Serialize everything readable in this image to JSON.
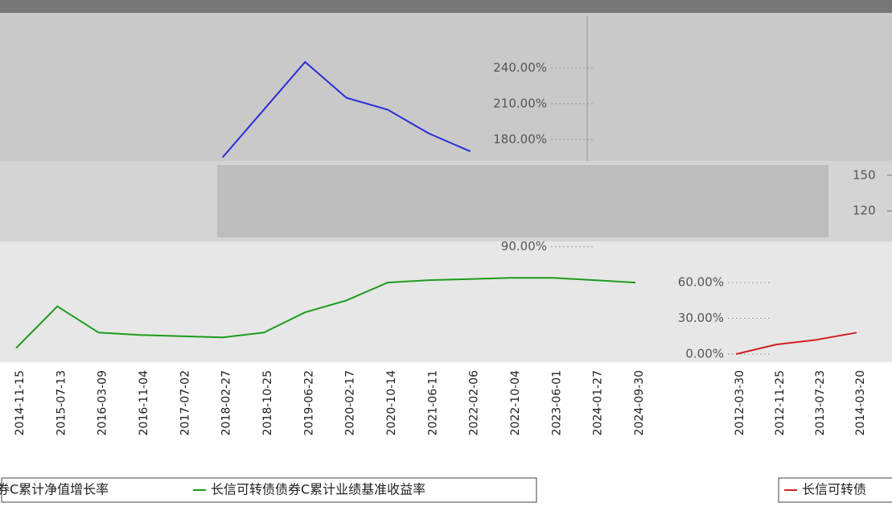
{
  "chart_data": [
    {
      "type": "line",
      "x": [
        "2014-11-15",
        "2015-07-13",
        "2016-03-09",
        "2016-11-04",
        "2017-07-02",
        "2018-02-27",
        "2018-10-25",
        "2019-06-22",
        "2020-02-17",
        "2020-10-14",
        "2021-06-11",
        "2022-02-06",
        "2022-10-04",
        "2023-06-01",
        "2024-01-27",
        "2024-09-30"
      ],
      "series": [
        {
          "name": "长信可转债债券C累计净值增长率",
          "color": "#2b2bd6",
          "values": [
            null,
            null,
            null,
            null,
            null,
            165,
            205,
            245,
            215,
            205,
            185,
            170,
            null,
            null,
            null,
            null
          ]
        },
        {
          "name": "长信可转债债券C累计业绩基准收益率",
          "color": "#1c9c1c",
          "values": [
            5,
            40,
            18,
            16,
            15,
            14,
            18,
            35,
            45,
            60,
            62,
            63,
            64,
            64,
            62,
            60
          ]
        }
      ],
      "ylim": [
        0,
        270
      ],
      "yticks": [
        {
          "value": 90,
          "label": "90.00%"
        },
        {
          "value": 180,
          "label": "180.00%"
        },
        {
          "value": 210,
          "label": "210.00%"
        },
        {
          "value": 240,
          "label": "240.00%"
        }
      ]
    },
    {
      "type": "line",
      "x": [
        "2012-03-30",
        "2012-11-25",
        "2013-07-23",
        "2014-03-20"
      ],
      "series": [
        {
          "name": "长信可转债",
          "color": "#d02020",
          "values": [
            0,
            8,
            12,
            18
          ]
        }
      ],
      "ylim": [
        0,
        270
      ],
      "yticks": [
        {
          "value": 0,
          "label": "0.00%"
        },
        {
          "value": 30,
          "label": "30.00%"
        },
        {
          "value": 60,
          "label": "60.00%"
        }
      ],
      "y2lim": [
        0,
        270
      ],
      "y2ticks": [
        120,
        150
      ]
    }
  ]
}
